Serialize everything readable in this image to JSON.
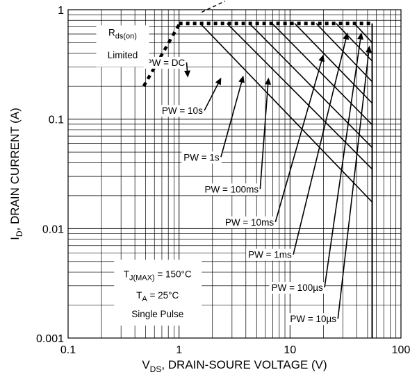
{
  "chart_data": {
    "type": "line",
    "title": "",
    "xlabel": {
      "main": "V",
      "sub": "DS",
      "rest": ", DRAIN-SOURE VOLTAGE (V)"
    },
    "ylabel": {
      "main": "I",
      "sub": "D",
      "rest": ", DRAIN CURRENT (A)"
    },
    "x_scale": "log",
    "y_scale": "log",
    "xlim": [
      0.1,
      100
    ],
    "ylim": [
      0.001,
      1
    ],
    "x_ticks": [
      {
        "value": 0.1,
        "label": "0.1"
      },
      {
        "value": 1,
        "label": "1"
      },
      {
        "value": 10,
        "label": "10"
      },
      {
        "value": 100,
        "label": "100"
      }
    ],
    "y_ticks": [
      {
        "value": 1,
        "label": "1"
      },
      {
        "value": 0.1,
        "label": "0.1"
      },
      {
        "value": 0.01,
        "label": "0.01"
      },
      {
        "value": 0.001,
        "label": "0.001"
      }
    ],
    "grid": true,
    "current_limit": 0.75,
    "vds_max": 55,
    "rds_on_line": {
      "label_main": "R",
      "label_sub": "ds(on)",
      "label_line2": "Limited",
      "points": [
        [
          0.48,
          0.2
        ],
        [
          2.6,
          1.2
        ]
      ]
    },
    "series": [
      {
        "name": "PW = DC",
        "points": [
          [
            1.55,
            0.75
          ],
          [
            55,
            0.0175
          ]
        ]
      },
      {
        "name": "PW = 10s",
        "points": [
          [
            2.7,
            0.75
          ],
          [
            55,
            0.035
          ]
        ]
      },
      {
        "name": "PW = 1s",
        "points": [
          [
            4.3,
            0.75
          ],
          [
            55,
            0.055
          ]
        ]
      },
      {
        "name": "PW = 100ms",
        "points": [
          [
            6.9,
            0.75
          ],
          [
            55,
            0.089
          ]
        ]
      },
      {
        "name": "PW = 10ms",
        "points": [
          [
            11,
            0.75
          ],
          [
            55,
            0.14
          ]
        ]
      },
      {
        "name": "PW = 1ms",
        "points": [
          [
            17.2,
            0.75
          ],
          [
            55,
            0.22
          ]
        ]
      },
      {
        "name": "PW = 100µs",
        "points": [
          [
            26,
            0.75
          ],
          [
            55,
            0.34
          ]
        ]
      },
      {
        "name": "PW = 10µs",
        "points": [
          [
            38,
            0.75
          ],
          [
            55,
            0.5
          ]
        ]
      }
    ],
    "annotations": [
      {
        "text": "PW = DC",
        "label_at": [
          0.5,
          0.33
        ],
        "arrow_to": [
          1.2,
          0.24
        ]
      },
      {
        "text": "PW = 10s",
        "label_at": [
          0.7,
          0.12
        ],
        "arrow_to": [
          2.4,
          0.24
        ]
      },
      {
        "text": "PW = 1s",
        "label_at": [
          1.1,
          0.045
        ],
        "arrow_to": [
          3.8,
          0.25
        ]
      },
      {
        "text": "PW = 100ms",
        "label_at": [
          1.7,
          0.023
        ],
        "arrow_to": [
          6.4,
          0.24
        ]
      },
      {
        "text": "PW = 10ms",
        "label_at": [
          2.6,
          0.0115
        ],
        "arrow_to": [
          20,
          0.39
        ]
      },
      {
        "text": "PW = 1ms",
        "label_at": [
          4.2,
          0.0058
        ],
        "arrow_to": [
          33,
          0.62
        ]
      },
      {
        "text": "PW = 100µs",
        "label_at": [
          6.8,
          0.0029
        ],
        "arrow_to": [
          44,
          0.62
        ]
      },
      {
        "text": "PW = 10µs",
        "label_at": [
          10,
          0.0015
        ],
        "arrow_to": [
          52,
          0.47
        ]
      }
    ],
    "conditions": {
      "line1_main": "T",
      "line1_sub": "J(MAX)",
      "line1_rest": " = 150°C",
      "line2_main": "T",
      "line2_sub": "A",
      "line2_rest": " = 25°C",
      "line3": "Single Pulse"
    }
  }
}
